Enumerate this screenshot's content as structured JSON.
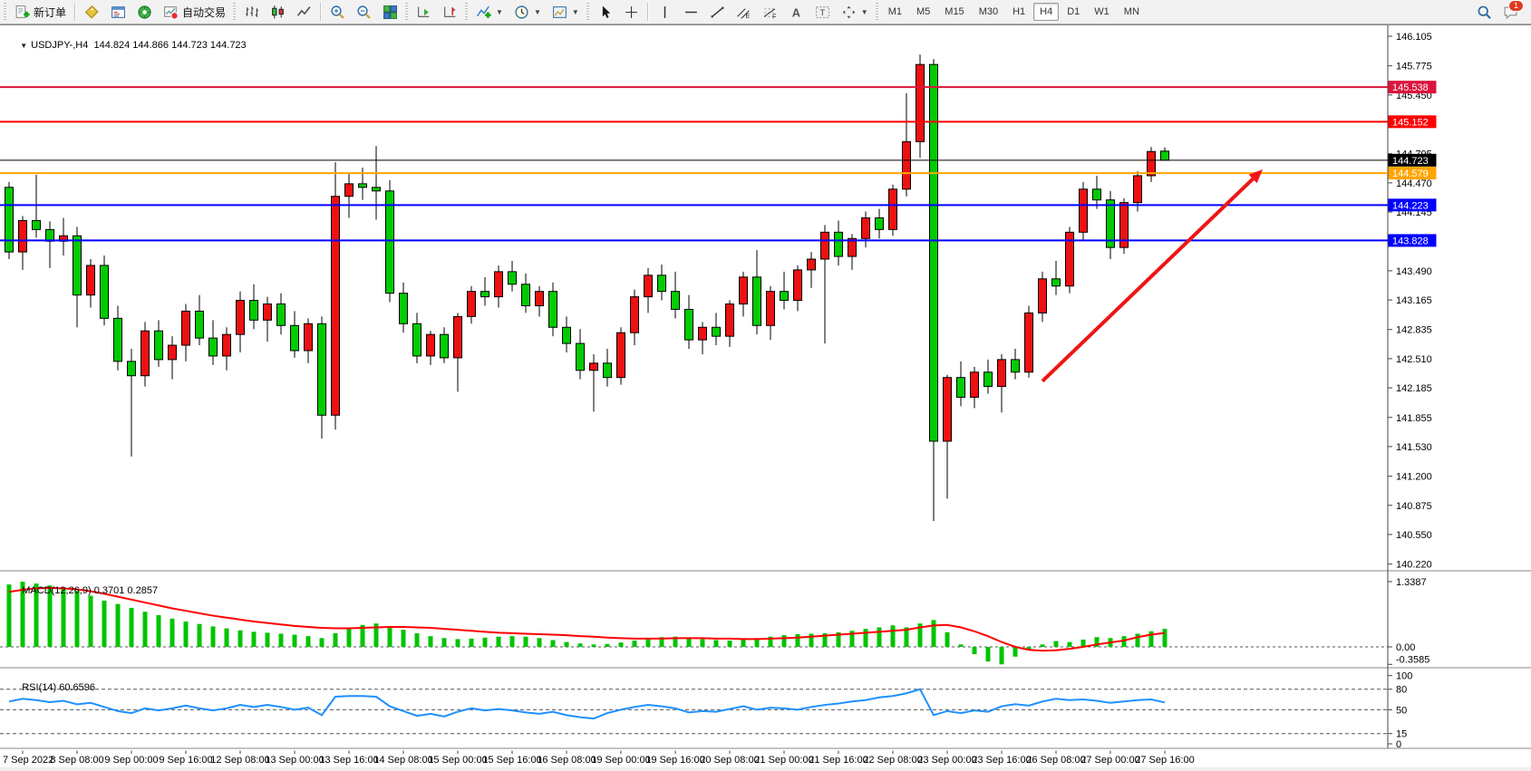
{
  "toolbar": {
    "new_order_label": "新订单",
    "autotrading_label": "自动交易",
    "timeframes": [
      "M1",
      "M5",
      "M15",
      "M30",
      "H1",
      "H4",
      "D1",
      "W1",
      "MN"
    ],
    "active_timeframe": "H4",
    "notification_badge": "1",
    "icons": [
      "new-order",
      "quotes",
      "market-watch",
      "navigator",
      "autotrading",
      "bar-chart",
      "candle-chart",
      "line-chart",
      "zoom-in",
      "zoom-out",
      "tile-windows",
      "auto-scroll",
      "chart-shift",
      "indicators",
      "clock",
      "template",
      "cursor",
      "crosshair",
      "vline",
      "hline",
      "trendline",
      "channel",
      "fibo",
      "text",
      "text-label",
      "arrows",
      "search",
      "chat"
    ]
  },
  "chart": {
    "title_symbol_period": "USDJPY-,H4",
    "title_ohlc": "144.824 144.866 144.723 144.723",
    "collapse_icon": "▼"
  },
  "chart_data": {
    "type": "candlestick",
    "symbol": "USDJPY-",
    "timeframe": "H4",
    "colors": {
      "bull": "#ee1111",
      "bear": "#00cc00",
      "wick": "#000000",
      "macd_hist": "#00c400",
      "macd_signal": "#ff0000",
      "rsi_line": "#1e90ff",
      "arrow": "#f01414",
      "level_crimson": "#dc143c",
      "level_red": "#ff0000",
      "level_orange": "#ffa500",
      "level_blue": "#0000ff",
      "bid_black": "#000000"
    },
    "price_axis_ticks": [
      146.105,
      145.775,
      145.45,
      145.125,
      144.795,
      144.47,
      144.145,
      143.82,
      143.49,
      143.165,
      142.835,
      142.51,
      142.185,
      141.855,
      141.53,
      141.2,
      140.875,
      140.55,
      140.22
    ],
    "time_labels": [
      "7 Sep 2022",
      "8 Sep 08:00",
      "9 Sep 00:00",
      "9 Sep 16:00",
      "12 Sep 08:00",
      "13 Sep 00:00",
      "13 Sep 16:00",
      "14 Sep 08:00",
      "15 Sep 00:00",
      "15 Sep 16:00",
      "16 Sep 08:00",
      "19 Sep 00:00",
      "19 Sep 16:00",
      "20 Sep 08:00",
      "21 Sep 00:00",
      "21 Sep 16:00",
      "22 Sep 08:00",
      "23 Sep 00:00",
      "23 Sep 16:00",
      "26 Sep 08:00",
      "27 Sep 00:00",
      "27 Sep 16:00"
    ],
    "candles": [
      [
        144.42,
        144.48,
        143.62,
        143.7
      ],
      [
        143.7,
        144.1,
        143.5,
        144.05
      ],
      [
        144.05,
        144.56,
        143.86,
        143.95
      ],
      [
        143.95,
        144.04,
        143.52,
        143.82
      ],
      [
        143.82,
        144.08,
        143.66,
        143.88
      ],
      [
        143.88,
        143.98,
        142.86,
        143.22
      ],
      [
        143.22,
        143.62,
        143.08,
        143.55
      ],
      [
        143.55,
        143.66,
        142.88,
        142.96
      ],
      [
        142.96,
        143.1,
        142.38,
        142.48
      ],
      [
        142.48,
        142.62,
        141.42,
        142.32
      ],
      [
        142.32,
        142.92,
        142.2,
        142.82
      ],
      [
        142.82,
        142.94,
        142.42,
        142.5
      ],
      [
        142.5,
        142.76,
        142.28,
        142.66
      ],
      [
        142.66,
        143.12,
        142.48,
        143.04
      ],
      [
        143.04,
        143.22,
        142.66,
        142.74
      ],
      [
        142.74,
        142.94,
        142.44,
        142.54
      ],
      [
        142.54,
        142.86,
        142.38,
        142.78
      ],
      [
        142.78,
        143.26,
        142.58,
        143.16
      ],
      [
        143.16,
        143.34,
        142.84,
        142.94
      ],
      [
        142.94,
        143.2,
        142.7,
        143.12
      ],
      [
        143.12,
        143.24,
        142.78,
        142.88
      ],
      [
        142.88,
        143.04,
        142.52,
        142.6
      ],
      [
        142.6,
        142.96,
        142.46,
        142.9
      ],
      [
        142.9,
        142.98,
        141.62,
        141.88
      ],
      [
        141.88,
        144.7,
        141.72,
        144.32
      ],
      [
        144.32,
        144.58,
        144.08,
        144.46
      ],
      [
        144.46,
        144.64,
        144.28,
        144.42
      ],
      [
        144.42,
        144.88,
        144.06,
        144.38
      ],
      [
        144.38,
        144.5,
        143.14,
        143.24
      ],
      [
        143.24,
        143.36,
        142.8,
        142.9
      ],
      [
        142.9,
        143.02,
        142.46,
        142.54
      ],
      [
        142.54,
        142.82,
        142.44,
        142.78
      ],
      [
        142.78,
        142.86,
        142.46,
        142.52
      ],
      [
        142.52,
        143.02,
        142.14,
        142.98
      ],
      [
        142.98,
        143.32,
        142.9,
        143.26
      ],
      [
        143.26,
        143.42,
        143.1,
        143.2
      ],
      [
        143.2,
        143.55,
        143.08,
        143.48
      ],
      [
        143.48,
        143.6,
        143.26,
        143.34
      ],
      [
        143.34,
        143.46,
        143.02,
        143.1
      ],
      [
        143.1,
        143.32,
        142.98,
        143.26
      ],
      [
        143.26,
        143.36,
        142.76,
        142.86
      ],
      [
        142.86,
        142.98,
        142.58,
        142.68
      ],
      [
        142.68,
        142.84,
        142.28,
        142.38
      ],
      [
        142.38,
        142.56,
        141.92,
        142.46
      ],
      [
        142.46,
        142.62,
        142.2,
        142.3
      ],
      [
        142.3,
        142.86,
        142.22,
        142.8
      ],
      [
        142.8,
        143.28,
        142.66,
        143.2
      ],
      [
        143.2,
        143.52,
        143.02,
        143.44
      ],
      [
        143.44,
        143.56,
        143.16,
        143.26
      ],
      [
        143.26,
        143.48,
        142.96,
        143.06
      ],
      [
        143.06,
        143.22,
        142.62,
        142.72
      ],
      [
        142.72,
        142.92,
        142.56,
        142.86
      ],
      [
        142.86,
        143.02,
        142.66,
        142.76
      ],
      [
        142.76,
        143.16,
        142.64,
        143.12
      ],
      [
        143.12,
        143.48,
        142.98,
        143.42
      ],
      [
        143.42,
        143.72,
        142.78,
        142.88
      ],
      [
        142.88,
        143.32,
        142.72,
        143.26
      ],
      [
        143.26,
        143.48,
        143.06,
        143.16
      ],
      [
        143.16,
        143.55,
        143.04,
        143.5
      ],
      [
        143.5,
        143.7,
        143.3,
        143.62
      ],
      [
        143.62,
        144.0,
        142.68,
        143.92
      ],
      [
        143.92,
        144.05,
        143.55,
        143.65
      ],
      [
        143.65,
        143.9,
        143.5,
        143.85
      ],
      [
        143.85,
        144.15,
        143.75,
        144.08
      ],
      [
        144.08,
        144.18,
        143.85,
        143.95
      ],
      [
        143.95,
        144.45,
        143.88,
        144.4
      ],
      [
        144.4,
        145.47,
        144.32,
        144.93
      ],
      [
        144.93,
        145.9,
        144.75,
        145.79
      ],
      [
        145.79,
        145.85,
        140.7,
        141.59
      ],
      [
        141.59,
        142.33,
        140.95,
        142.3
      ],
      [
        142.3,
        142.48,
        141.98,
        142.08
      ],
      [
        142.08,
        142.42,
        141.96,
        142.36
      ],
      [
        142.36,
        142.5,
        142.12,
        142.2
      ],
      [
        142.2,
        142.56,
        141.91,
        142.5
      ],
      [
        142.5,
        142.62,
        142.28,
        142.36
      ],
      [
        142.36,
        143.1,
        142.3,
        143.02
      ],
      [
        143.02,
        143.48,
        142.92,
        143.4
      ],
      [
        143.4,
        143.6,
        143.22,
        143.32
      ],
      [
        143.32,
        143.98,
        143.24,
        143.92
      ],
      [
        143.92,
        144.48,
        143.82,
        144.4
      ],
      [
        144.4,
        144.55,
        144.18,
        144.28
      ],
      [
        144.28,
        144.38,
        143.62,
        143.75
      ],
      [
        143.75,
        144.3,
        143.68,
        144.25
      ],
      [
        144.25,
        144.6,
        144.15,
        144.55
      ],
      [
        144.55,
        144.87,
        144.48,
        144.82
      ],
      [
        144.824,
        144.866,
        144.723,
        144.723
      ]
    ],
    "hlines": [
      {
        "price": 145.538,
        "label": "145.538",
        "color": "#dc143c",
        "width": 2
      },
      {
        "price": 145.152,
        "label": "145.152",
        "color": "#ff0000",
        "width": 2
      },
      {
        "price": 144.723,
        "label": "144.723",
        "color": "#000000",
        "width": 1
      },
      {
        "price": 144.579,
        "label": "144.579",
        "color": "#ffa500",
        "width": 2
      },
      {
        "price": 144.223,
        "label": "144.223",
        "color": "#0000ff",
        "width": 2
      },
      {
        "price": 143.828,
        "label": "143.828",
        "color": "#0000ff",
        "width": 2
      }
    ],
    "macd": {
      "label": "MACD(12,26,9)",
      "values_text": "0.3701 0.2857",
      "axis_labels": [
        "1.3387",
        "0.00",
        "-0.3585"
      ],
      "max": 1.3387,
      "min": -0.3585,
      "histogram": [
        1.28,
        1.3387,
        1.3,
        1.26,
        1.22,
        1.15,
        1.05,
        0.95,
        0.88,
        0.8,
        0.72,
        0.65,
        0.58,
        0.52,
        0.47,
        0.42,
        0.38,
        0.34,
        0.31,
        0.29,
        0.27,
        0.25,
        0.22,
        0.18,
        0.28,
        0.38,
        0.45,
        0.48,
        0.42,
        0.35,
        0.28,
        0.22,
        0.18,
        0.16,
        0.17,
        0.19,
        0.21,
        0.22,
        0.21,
        0.18,
        0.14,
        0.1,
        0.07,
        0.05,
        0.06,
        0.09,
        0.13,
        0.17,
        0.2,
        0.21,
        0.19,
        0.16,
        0.14,
        0.13,
        0.15,
        0.18,
        0.21,
        0.24,
        0.26,
        0.27,
        0.28,
        0.3,
        0.33,
        0.37,
        0.4,
        0.44,
        0.4,
        0.48,
        0.55,
        0.3,
        0.05,
        -0.15,
        -0.3,
        -0.3585,
        -0.2,
        -0.05,
        0.05,
        0.12,
        0.1,
        0.15,
        0.2,
        0.18,
        0.22,
        0.27,
        0.32,
        0.3701
      ],
      "signal": [
        1.13,
        1.17,
        1.2,
        1.21,
        1.2,
        1.18,
        1.14,
        1.09,
        1.03,
        0.97,
        0.91,
        0.85,
        0.79,
        0.74,
        0.69,
        0.64,
        0.6,
        0.56,
        0.52,
        0.49,
        0.46,
        0.43,
        0.41,
        0.39,
        0.38,
        0.38,
        0.39,
        0.4,
        0.41,
        0.41,
        0.4,
        0.39,
        0.37,
        0.35,
        0.33,
        0.31,
        0.29,
        0.28,
        0.27,
        0.26,
        0.25,
        0.24,
        0.22,
        0.21,
        0.19,
        0.18,
        0.17,
        0.17,
        0.17,
        0.18,
        0.18,
        0.18,
        0.17,
        0.17,
        0.16,
        0.16,
        0.17,
        0.18,
        0.19,
        0.21,
        0.23,
        0.25,
        0.27,
        0.29,
        0.31,
        0.33,
        0.35,
        0.4,
        0.44,
        0.45,
        0.4,
        0.32,
        0.22,
        0.1,
        0.0,
        -0.06,
        -0.08,
        -0.07,
        -0.04,
        0.0,
        0.05,
        0.09,
        0.13,
        0.2,
        0.25,
        0.2857
      ]
    },
    "rsi": {
      "label": "RSI(14)",
      "value_text": "60.6596",
      "axis_labels": [
        100,
        80,
        50,
        15,
        0
      ],
      "dashed_levels": [
        80,
        50,
        15
      ],
      "series": [
        62,
        66,
        64,
        61,
        63,
        58,
        60,
        54,
        48,
        45,
        52,
        49,
        52,
        56,
        52,
        49,
        52,
        57,
        54,
        57,
        54,
        50,
        53,
        42,
        69,
        70,
        70,
        69,
        55,
        48,
        41,
        44,
        40,
        47,
        52,
        49,
        51,
        49,
        46,
        44,
        47,
        42,
        39,
        37,
        45,
        50,
        54,
        57,
        55,
        52,
        46,
        48,
        47,
        51,
        55,
        50,
        53,
        52,
        50,
        54,
        57,
        59,
        62,
        64,
        68,
        70,
        74,
        80,
        42,
        48,
        45,
        49,
        47,
        55,
        58,
        56,
        62,
        66,
        64,
        65,
        63,
        60,
        62,
        64,
        65,
        60.66
      ]
    },
    "annotation_arrow": {
      "from_bar": 76,
      "from_price": 142.26,
      "to_bar": 92.2,
      "to_price": 144.62
    }
  }
}
